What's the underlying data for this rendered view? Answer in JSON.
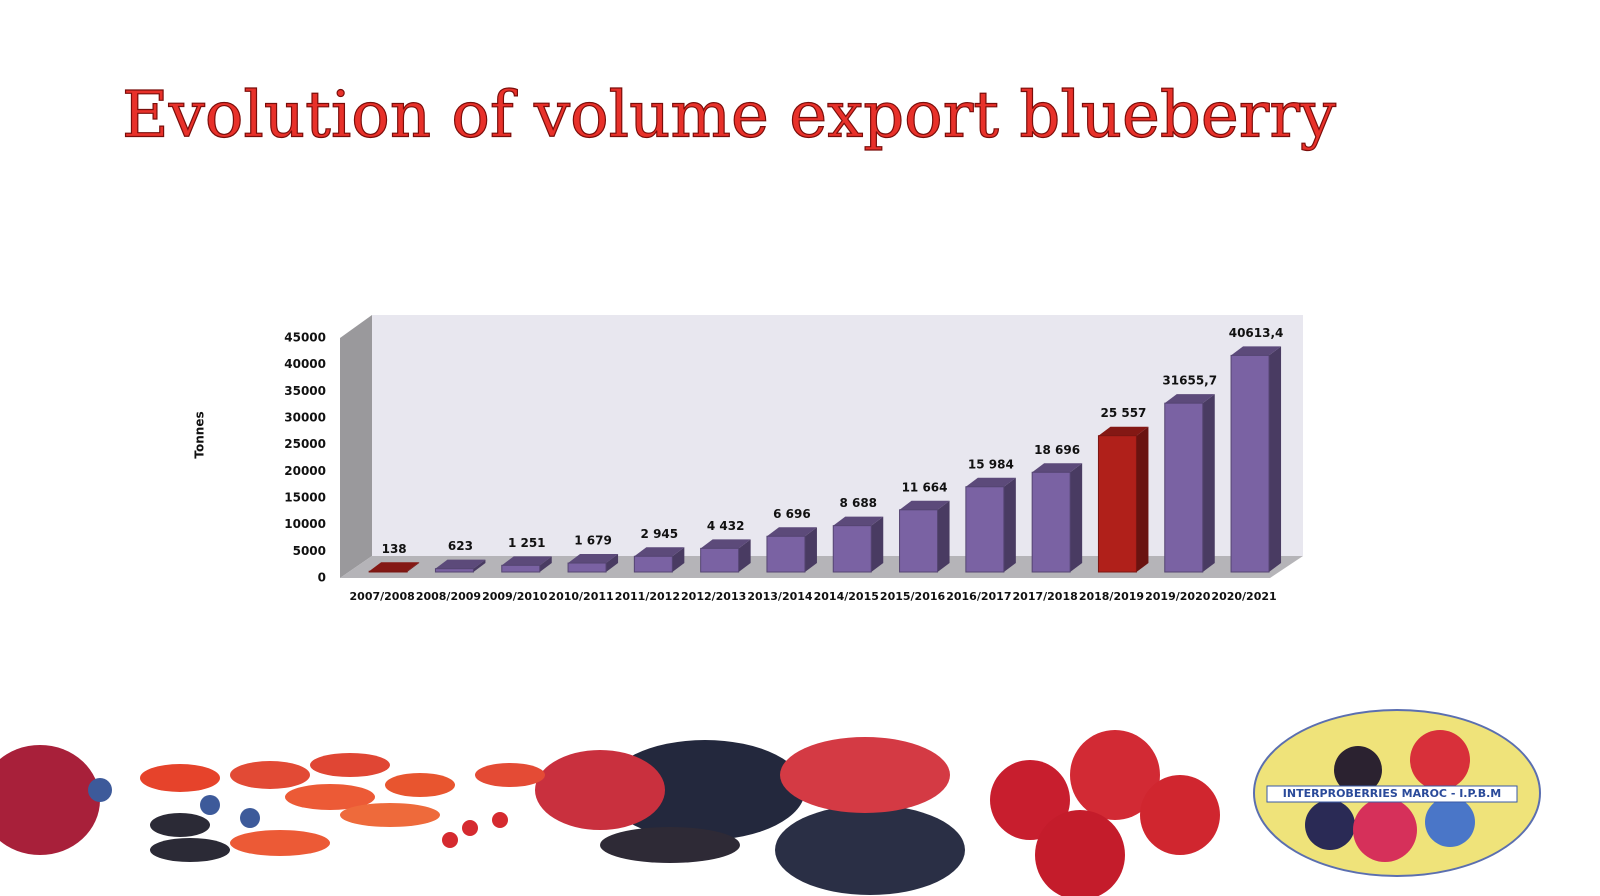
{
  "chart_data": {
    "type": "bar3d",
    "title": "Evolution of volume export blueberry",
    "y_label": "Tonnes",
    "categories": [
      "2007/2008",
      "2008/2009",
      "2009/2010",
      "2010/2011",
      "2011/2012",
      "2012/2013",
      "2013/2014",
      "2014/2015",
      "2015/2016",
      "2016/2017",
      "2017/2018",
      "2018/2019",
      "2019/2020",
      "2020/2021"
    ],
    "values": [
      138,
      623,
      1251,
      1679,
      2945,
      4432,
      6696,
      8688,
      11664,
      15984,
      18696,
      25557,
      31655.7,
      40613.4
    ],
    "value_labels": [
      "138",
      "623",
      "1 251",
      "1 679",
      "2 945",
      "4 432",
      "6 696",
      "8 688",
      "11 664",
      "15 984",
      "18 696",
      "25 557",
      "31655,7",
      "40613,4"
    ],
    "colors": [
      "#b0201a",
      "#7a62a3",
      "#7a62a3",
      "#7a62a3",
      "#7a62a3",
      "#7a62a3",
      "#7a62a3",
      "#7a62a3",
      "#7a62a3",
      "#7a62a3",
      "#7a62a3",
      "#b0201a",
      "#7a62a3",
      "#7a62a3"
    ],
    "ylim": [
      0,
      45000
    ],
    "yticks": [
      0,
      5000,
      10000,
      15000,
      20000,
      25000,
      30000,
      35000,
      40000,
      45000
    ]
  },
  "logo_text": "INTERPROBERRIES MAROC - I.P.B.M"
}
